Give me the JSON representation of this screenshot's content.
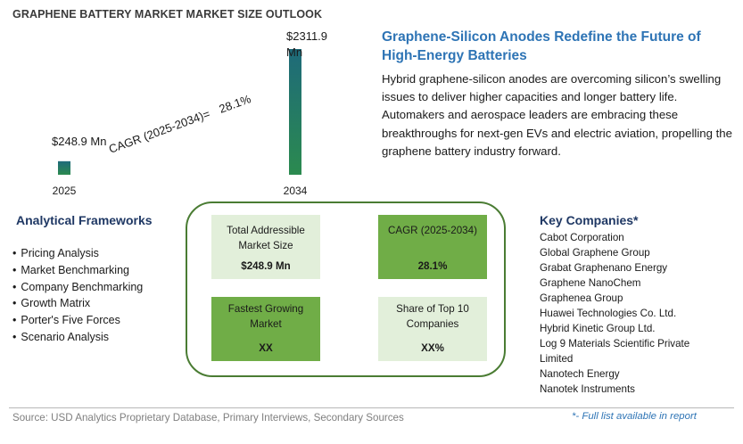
{
  "chart_data": {
    "type": "bar",
    "title": "GRAPHENE BATTERY MARKET MARKET SIZE OUTLOOK",
    "categories": [
      "2025",
      "2034"
    ],
    "values": [
      248.9,
      2311.9
    ],
    "data_labels": [
      "$248.9 Mn",
      "$2311.9 Mn"
    ],
    "cagr_label": "CAGR (2025-2034)=",
    "cagr_value": "28.1%",
    "xlabel": "",
    "ylabel": "",
    "grid": false,
    "legend": "none"
  },
  "colors": {
    "bar_top": "#1e6a7a",
    "bar_bottom": "#2b8a4f",
    "heading_blue": "#2e74b5",
    "dark_green": "#70ad47",
    "light_green": "#e2efda",
    "box_border": "#4a7c33"
  },
  "headline": "Graphene-Silicon Anodes Redefine the Future of High-Energy Batteries",
  "description": "Hybrid graphene-silicon anodes are overcoming silicon’s swelling issues to deliver higher capacities and longer battery life. Automakers and aerospace leaders are embracing these breakthroughs for next-gen EVs and electric aviation, propelling the graphene battery industry forward.",
  "frameworks": {
    "title": "Analytical Frameworks",
    "items": [
      "Pricing Analysis",
      "Market Benchmarking",
      "Company Benchmarking",
      "Growth Matrix",
      "Porter's Five Forces",
      "Scenario Analysis"
    ]
  },
  "metrics": [
    {
      "label": "Total Addressible Market Size",
      "value": "$248.9 Mn"
    },
    {
      "label": "CAGR (2025-2034)",
      "value": "28.1%"
    },
    {
      "label": "Fastest Growing Market",
      "value": "XX"
    },
    {
      "label": "Share of Top 10 Companies",
      "value": "XX%"
    }
  ],
  "companies": {
    "title": "Key Companies*",
    "items": [
      "Cabot Corporation",
      "Global Graphene Group",
      "Grabat Graphenano Energy",
      "Graphene NanoChem",
      "Graphenea Group",
      "Huawei Technologies Co. Ltd.",
      "Hybrid Kinetic Group Ltd.",
      "Log 9 Materials Scientific Private Limited",
      "Nanotech Energy",
      "Nanotek Instruments"
    ],
    "note": "*- Full list available in report"
  },
  "source": "Source: USD Analytics Proprietary Database, Primary Interviews, Secondary Sources"
}
